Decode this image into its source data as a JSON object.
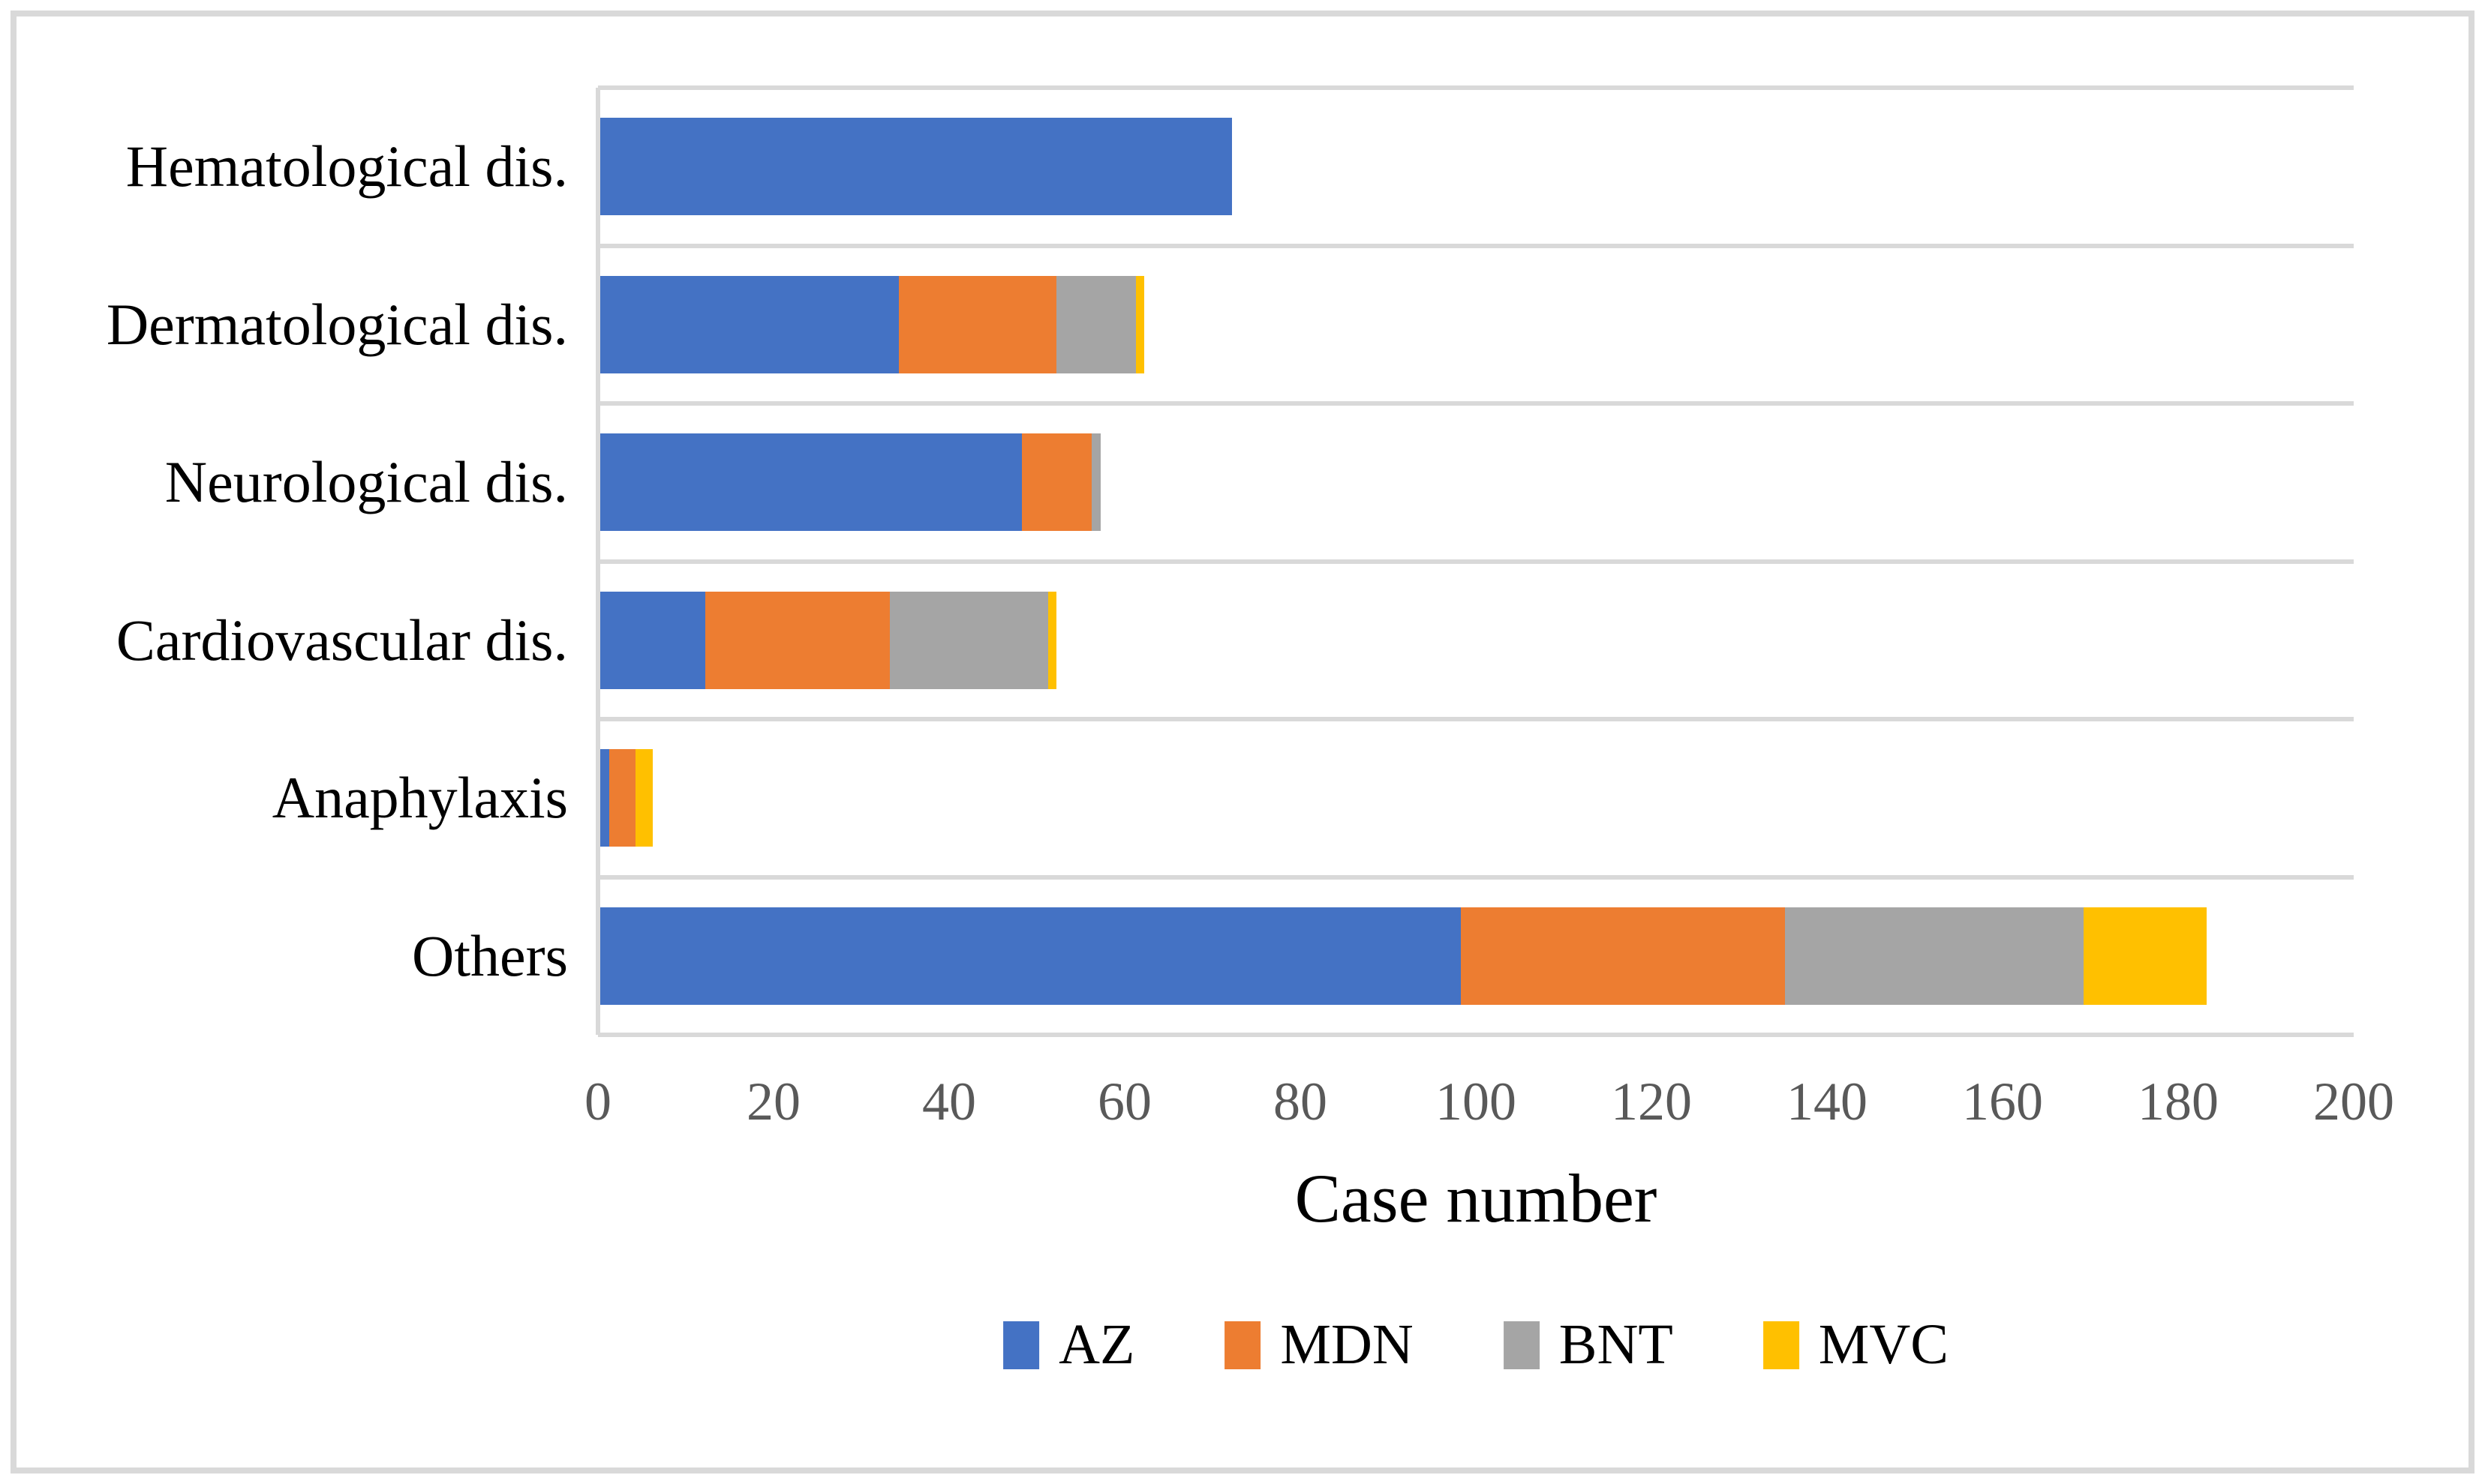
{
  "figure": {
    "background": "#FFFFFF",
    "border_color": "#D9D9D9",
    "grid_color": "#D9D9D9",
    "axis_color": "#D9D9D9",
    "tick_color": "#595959",
    "text_color": "#000000"
  },
  "chart_data": {
    "type": "bar",
    "orientation": "horizontal",
    "stacked": true,
    "categories": [
      "Hematological dis.",
      "Dermatological dis.",
      "Neurological dis.",
      "Cardiovascular dis.",
      "Anaphylaxis",
      "Others"
    ],
    "series": [
      {
        "name": "AZ",
        "color": "#4472C4",
        "values": [
          72,
          34,
          48,
          12,
          1,
          98
        ]
      },
      {
        "name": "MDN",
        "color": "#ED7D31",
        "values": [
          0,
          18,
          8,
          21,
          3,
          37
        ]
      },
      {
        "name": "BNT",
        "color": "#A5A5A5",
        "values": [
          0,
          9,
          1,
          18,
          0,
          34
        ]
      },
      {
        "name": "MVC",
        "color": "#FFC000",
        "values": [
          0,
          1,
          0,
          1,
          2,
          14
        ]
      }
    ],
    "totals": [
      72,
      62,
      57,
      52,
      6,
      183
    ],
    "xlabel": "Case number",
    "xlim": [
      0,
      200
    ],
    "xticks": [
      0,
      20,
      40,
      60,
      80,
      100,
      120,
      140,
      160,
      180,
      200
    ],
    "legend_position": "bottom",
    "legend_entries": [
      "AZ",
      "MDN",
      "BNT",
      "MVC"
    ],
    "gridlines": "horizontal category separators"
  }
}
